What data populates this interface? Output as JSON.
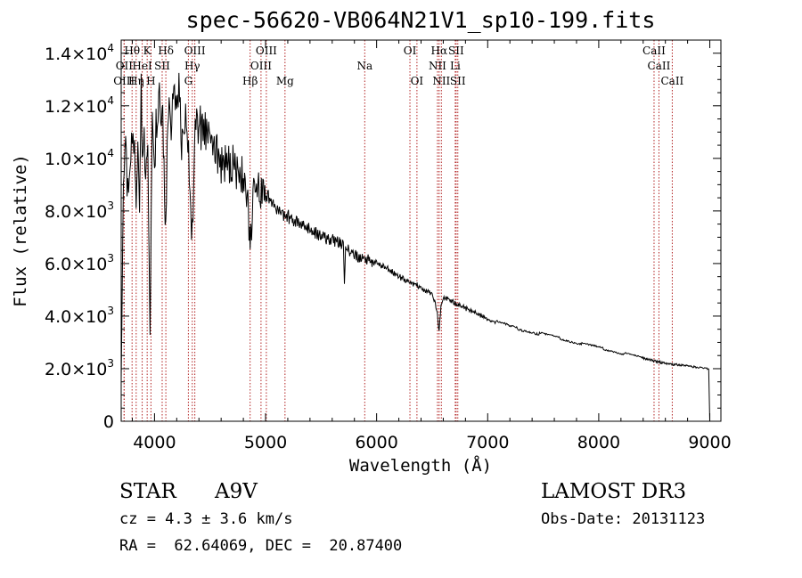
{
  "chart_data": {
    "type": "line",
    "title": "spec-56620-VB064N21V1_sp10-199.fits",
    "xlabel": "Wavelength (Å)",
    "ylabel": "Flux (relative)",
    "xlim": [
      3700,
      9100
    ],
    "ylim": [
      0,
      14500
    ],
    "x_ticks": [
      4000,
      5000,
      6000,
      7000,
      8000,
      9000
    ],
    "x_tick_labels": [
      "4000",
      "5000",
      "6000",
      "7000",
      "8000",
      "9000"
    ],
    "y_ticks": [
      0,
      2000,
      4000,
      6000,
      8000,
      10000,
      12000,
      14000
    ],
    "y_tick_labels": [
      {
        "mant": "0",
        "exp": ""
      },
      {
        "mant": "2.0×10",
        "exp": "3"
      },
      {
        "mant": "4.0×10",
        "exp": "3"
      },
      {
        "mant": "6.0×10",
        "exp": "3"
      },
      {
        "mant": "8.0×10",
        "exp": "3"
      },
      {
        "mant": "1.0×10",
        "exp": "4"
      },
      {
        "mant": "1.2×10",
        "exp": "4"
      },
      {
        "mant": "1.4×10",
        "exp": "4"
      }
    ],
    "series": [
      {
        "name": "flux",
        "x": [
          3700,
          3720,
          3740,
          3760,
          3780,
          3800,
          3820,
          3835,
          3850,
          3865,
          3880,
          3890,
          3900,
          3920,
          3940,
          3960,
          3970,
          3980,
          4000,
          4020,
          4050,
          4080,
          4101,
          4120,
          4150,
          4180,
          4200,
          4220,
          4250,
          4280,
          4300,
          4320,
          4340,
          4360,
          4380,
          4400,
          4450,
          4500,
          4550,
          4600,
          4650,
          4700,
          4750,
          4800,
          4840,
          4861,
          4880,
          4900,
          4950,
          5000,
          5050,
          5100,
          5150,
          5200,
          5300,
          5400,
          5500,
          5600,
          5700,
          5710,
          5720,
          5800,
          5900,
          6000,
          6100,
          6200,
          6300,
          6400,
          6500,
          6540,
          6563,
          6580,
          6600,
          6650,
          6700,
          6800,
          6900,
          7000,
          7200,
          7400,
          7600,
          7800,
          8000,
          8200,
          8400,
          8500,
          8600,
          8700,
          8800,
          8900,
          8990,
          9000
        ],
        "y": [
          1500,
          9500,
          10000,
          8800,
          9800,
          10500,
          10200,
          7500,
          10600,
          7800,
          12300,
          9500,
          11300,
          8500,
          11000,
          3300,
          8000,
          11400,
          9800,
          11700,
          12000,
          10800,
          7000,
          12200,
          11000,
          12800,
          11800,
          12300,
          10500,
          11500,
          10800,
          8000,
          7100,
          10600,
          11200,
          11400,
          11000,
          10700,
          10200,
          9900,
          9900,
          9700,
          9500,
          9200,
          8500,
          6600,
          7900,
          8900,
          8800,
          8600,
          8400,
          8100,
          7900,
          7800,
          7500,
          7300,
          7000,
          6900,
          6700,
          5300,
          6600,
          6300,
          6200,
          6000,
          5800,
          5500,
          5300,
          5100,
          4800,
          4300,
          3400,
          4400,
          4700,
          4650,
          4500,
          4300,
          4100,
          3900,
          3600,
          3400,
          3200,
          3000,
          2800,
          2600,
          2400,
          2300,
          2200,
          2150,
          2100,
          2050,
          2000,
          0
        ]
      }
    ],
    "spectral_lines": [
      {
        "label": "Hθ",
        "wl": 3798,
        "row": 0
      },
      {
        "label": "K",
        "wl": 3934,
        "row": 0
      },
      {
        "label": "Hδ",
        "wl": 4102,
        "row": 0
      },
      {
        "label": "OIII",
        "wl": 4363,
        "row": 0
      },
      {
        "label": "OIII",
        "wl": 5007,
        "row": 0
      },
      {
        "label": "OI",
        "wl": 6300,
        "row": 0
      },
      {
        "label": "Hα",
        "wl": 6563,
        "row": 0
      },
      {
        "label": "SII",
        "wl": 6716,
        "row": 0
      },
      {
        "label": "CaII",
        "wl": 8498,
        "row": 0
      },
      {
        "label": "OII",
        "wl": 3727,
        "row": 1
      },
      {
        "label": "HeI",
        "wl": 3889,
        "row": 1
      },
      {
        "label": "SII",
        "wl": 4069,
        "row": 1
      },
      {
        "label": "Hγ",
        "wl": 4340,
        "row": 1
      },
      {
        "label": "OIII",
        "wl": 4959,
        "row": 1
      },
      {
        "label": "Na",
        "wl": 5893,
        "row": 1
      },
      {
        "label": "NII",
        "wl": 6548,
        "row": 1
      },
      {
        "label": "Li",
        "wl": 6708,
        "row": 1
      },
      {
        "label": "CaII",
        "wl": 8542,
        "row": 1
      },
      {
        "label": "OIII",
        "wl": 3726,
        "row": 2
      },
      {
        "label": "Hη",
        "wl": 3835,
        "row": 2
      },
      {
        "label": "H",
        "wl": 3968,
        "row": 2
      },
      {
        "label": "G",
        "wl": 4305,
        "row": 2
      },
      {
        "label": "Hβ",
        "wl": 4861,
        "row": 2
      },
      {
        "label": "Mg",
        "wl": 5175,
        "row": 2
      },
      {
        "label": "OI",
        "wl": 6363,
        "row": 2
      },
      {
        "label": "NII",
        "wl": 6583,
        "row": 2
      },
      {
        "label": "SII",
        "wl": 6731,
        "row": 2
      },
      {
        "label": "CaII",
        "wl": 8662,
        "row": 2
      }
    ]
  },
  "info": {
    "object_class": "STAR",
    "subclass": "A9V",
    "survey": "LAMOST DR3",
    "cz": "cz = 4.3 ± 3.6 km/s",
    "obs_date": "Obs-Date: 20131123",
    "coords": "RA =  62.64069, DEC =  20.87400"
  },
  "colors": {
    "line": "#000000",
    "marker": "#b22222",
    "axes": "#000000",
    "background": "#ffffff"
  }
}
